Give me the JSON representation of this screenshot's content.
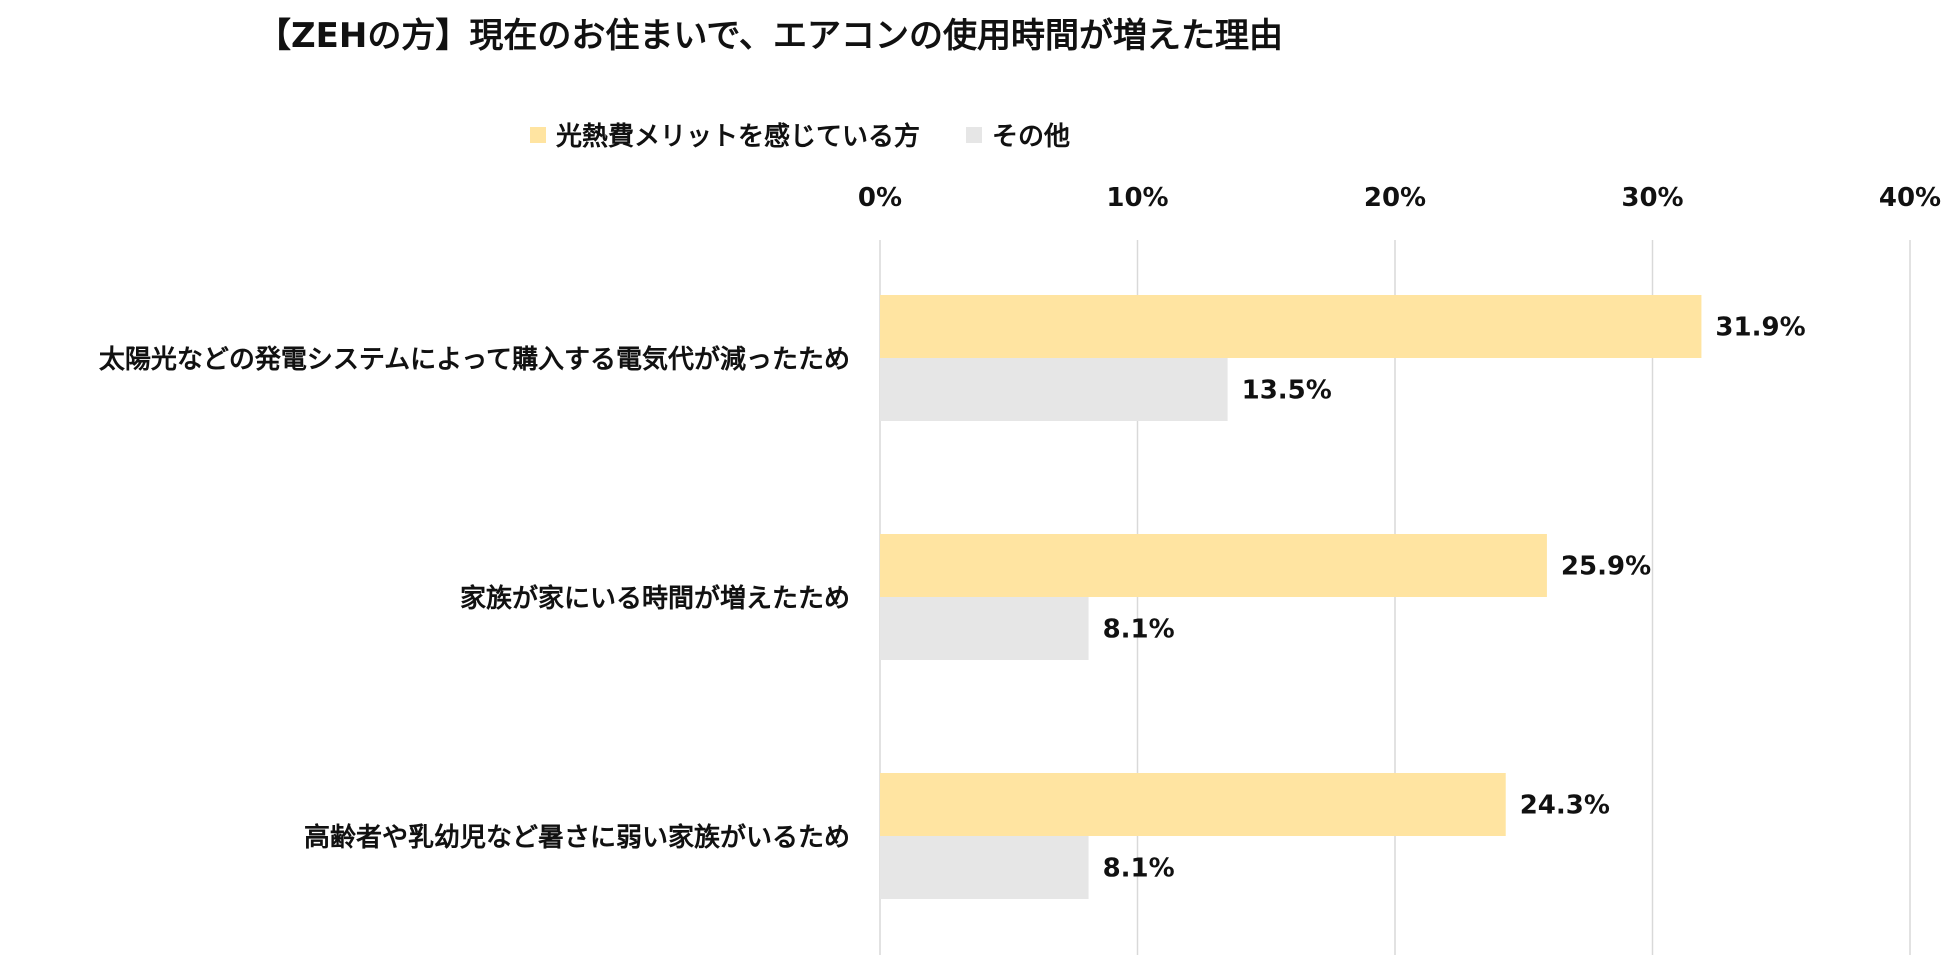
{
  "chart_data": {
    "type": "bar",
    "orientation": "horizontal",
    "title": "【ZEHの方】現在のお住まいで、エアコンの使用時間が増えた理由",
    "categories": [
      "太陽光などの発電システムによって購入する電気代が減ったため",
      "家族が家にいる時間が増えたため",
      "高齢者や乳幼児など暑さに弱い家族がいるため"
    ],
    "series": [
      {
        "name": "光熱費メリットを感じている方",
        "color": "#FFE4A1",
        "values": [
          31.9,
          25.9,
          24.3
        ],
        "labels": [
          "31.9%",
          "25.9%",
          "24.3%"
        ]
      },
      {
        "name": "その他",
        "color": "#E6E6E6",
        "values": [
          13.5,
          8.1,
          8.1
        ],
        "labels": [
          "13.5%",
          "8.1%",
          "8.1%"
        ]
      }
    ],
    "xlim": [
      0,
      40
    ],
    "xticks": [
      0,
      10,
      20,
      30,
      40
    ],
    "xtick_labels": [
      "0%",
      "10%",
      "20%",
      "30%",
      "40%"
    ],
    "xaxis_position": "top",
    "grid": true,
    "gridline_color": "#D9D9D9",
    "legend_position": "top-center"
  }
}
